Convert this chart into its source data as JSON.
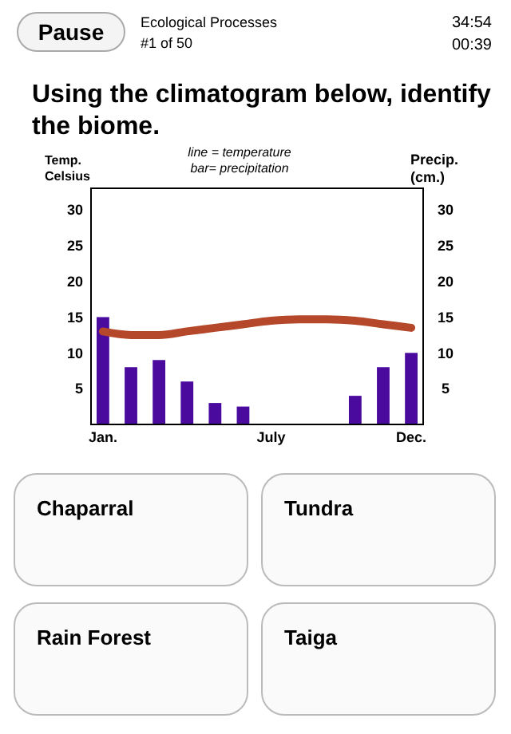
{
  "chart_data": {
    "type": "bar",
    "title": "Using the climatogram below, identify the biome.",
    "ylabel": "Temp.\nCelsius",
    "y2label": "Precip.\n(cm.)",
    "categories": [
      "Jan.",
      null,
      null,
      null,
      null,
      null,
      "July",
      null,
      null,
      null,
      null,
      "Dec."
    ],
    "series": [
      {
        "axis": "y2",
        "color": "#4b0a9e",
        "values": [
          15,
          8,
          9,
          6,
          3,
          2.5,
          0,
          0,
          0,
          4,
          8,
          10
        ]
      },
      {
        "type": "line",
        "color": "#b5482a",
        "values": [
          13,
          12.5,
          12.5,
          13,
          13.5,
          14,
          14.5,
          14.7,
          14.7,
          14.5,
          14,
          13.5
        ]
      }
    ],
    "ylim": [
      0,
      33
    ],
    "yticks": [
      5,
      10,
      15,
      20,
      25,
      30
    ],
    "y2lim": [
      0,
      33
    ],
    "y2ticks": [
      5,
      10,
      15,
      20,
      25,
      30
    ],
    "annotations": [
      "Pause",
      "Ecological Processes",
      "#1 of 50",
      "34:54",
      "00:39",
      "line = temperature",
      "bar= precipitation",
      "Chaparral",
      "Tundra",
      "Rain Forest",
      "Taiga"
    ]
  }
}
